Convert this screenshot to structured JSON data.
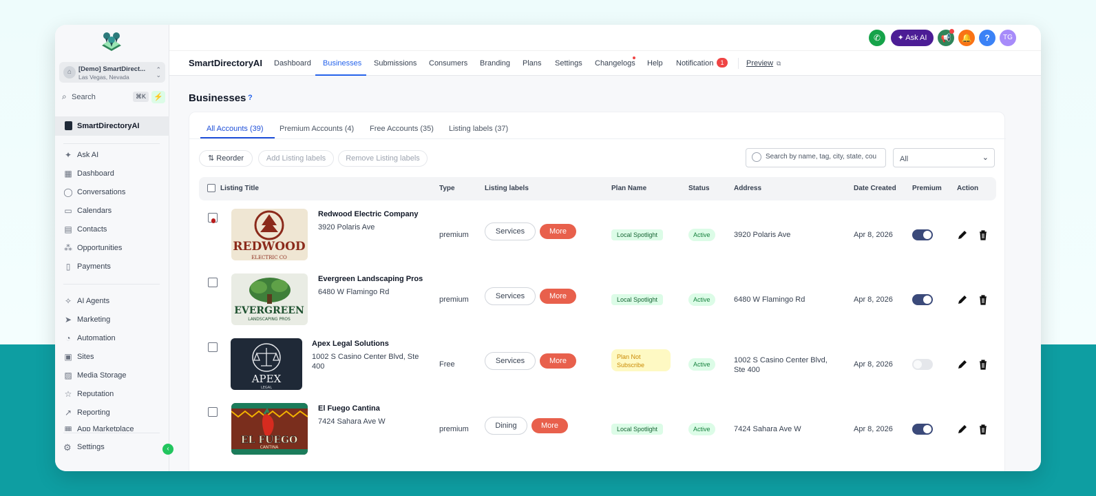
{
  "sidebar": {
    "account": {
      "name": "[Demo] SmartDirect...",
      "location": "Las Vegas, Nevada"
    },
    "search": {
      "label": "Search",
      "shortcut": "⌘K"
    },
    "active_item": "SmartDirectoryAI",
    "items_top": [
      {
        "label": "Ask AI",
        "icon": "sparkle-icon"
      },
      {
        "label": "Dashboard",
        "icon": "grid-icon"
      },
      {
        "label": "Conversations",
        "icon": "chat-icon"
      },
      {
        "label": "Calendars",
        "icon": "calendar-icon"
      },
      {
        "label": "Contacts",
        "icon": "contacts-icon"
      },
      {
        "label": "Opportunities",
        "icon": "opportunities-icon"
      },
      {
        "label": "Payments",
        "icon": "payments-icon"
      }
    ],
    "items_bottom": [
      {
        "label": "AI Agents",
        "icon": "ai-agents-icon"
      },
      {
        "label": "Marketing",
        "icon": "send-icon"
      },
      {
        "label": "Automation",
        "icon": "automation-icon"
      },
      {
        "label": "Sites",
        "icon": "sites-icon"
      },
      {
        "label": "Media Storage",
        "icon": "image-icon"
      },
      {
        "label": "Reputation",
        "icon": "star-icon"
      },
      {
        "label": "Reporting",
        "icon": "chart-icon"
      },
      {
        "label": "App Marketplace",
        "icon": "marketplace-icon"
      }
    ],
    "settings_label": "Settings"
  },
  "topbar": {
    "ask_ai_label": "Ask AI",
    "avatar_initials": "TG",
    "help_label": "?",
    "colors": {
      "phone": "#16a34a",
      "megaphone": "#2f855a",
      "bell": "#f97316",
      "help": "#3b82f6",
      "avatar": "#a78bfa"
    }
  },
  "nav": {
    "brand": "SmartDirectoryAI",
    "items": [
      "Dashboard",
      "Businesses",
      "Submissions",
      "Consumers",
      "Branding",
      "Plans",
      "Settings",
      "Changelogs",
      "Help",
      "Notification"
    ],
    "active": "Businesses",
    "notification_count": "1",
    "preview_label": "Preview"
  },
  "page": {
    "title": "Businesses",
    "help": "?",
    "tabs": [
      "All Accounts (39)",
      "Premium Accounts (4)",
      "Free Accounts (35)",
      "Listing labels (37)"
    ],
    "actions": {
      "reorder": "Reorder",
      "add_labels": "Add Listing labels",
      "remove_labels": "Remove Listing labels"
    },
    "search_placeholder": "Search by name, tag, city, state, cou",
    "filter_value": "All"
  },
  "table": {
    "columns": {
      "title": "Listing Title",
      "type": "Type",
      "labels": "Listing labels",
      "plan": "Plan Name",
      "status": "Status",
      "address": "Address",
      "date": "Date Created",
      "premium": "Premium",
      "action": "Action"
    },
    "rows": [
      {
        "name": "Redwood Electric Company",
        "listing_address": "3920 Polaris Ave",
        "type": "premium",
        "label": "Services",
        "more": "More",
        "plan": "Local Spotlight",
        "status": "Active",
        "address": "3920 Polaris Ave",
        "date": "Apr 8, 2026",
        "premium": true,
        "logo_text": "REDWOOD",
        "logo_sub": "ELECTRIC CO"
      },
      {
        "name": "Evergreen Landscaping Pros",
        "listing_address": "6480 W Flamingo Rd",
        "type": "premium",
        "label": "Services",
        "more": "More",
        "plan": "Local Spotlight",
        "status": "Active",
        "address": "6480 W Flamingo Rd",
        "date": "Apr 8, 2026",
        "premium": true,
        "logo_text": "EVERGREEN",
        "logo_sub": "LANDSCAPING PROS"
      },
      {
        "name": "Apex Legal Solutions",
        "listing_address": "1002 S Casino Center Blvd, Ste 400",
        "type": "Free",
        "label": "Services",
        "more": "More",
        "plan": "Plan Not Subscribe",
        "status": "Active",
        "address": "1002 S Casino Center Blvd, Ste 400",
        "date": "Apr 8, 2026",
        "premium": false,
        "logo_text": "APEX",
        "logo_sub": "LEGAL"
      },
      {
        "name": "El Fuego Cantina",
        "listing_address": "7424 Sahara Ave W",
        "type": "premium",
        "label": "Dining",
        "more": "More",
        "plan": "Local Spotlight",
        "status": "Active",
        "address": "7424 Sahara Ave W",
        "date": "Apr 8, 2026",
        "premium": true,
        "logo_text": "EL FUEGO",
        "logo_sub": "CANTINA"
      }
    ]
  }
}
